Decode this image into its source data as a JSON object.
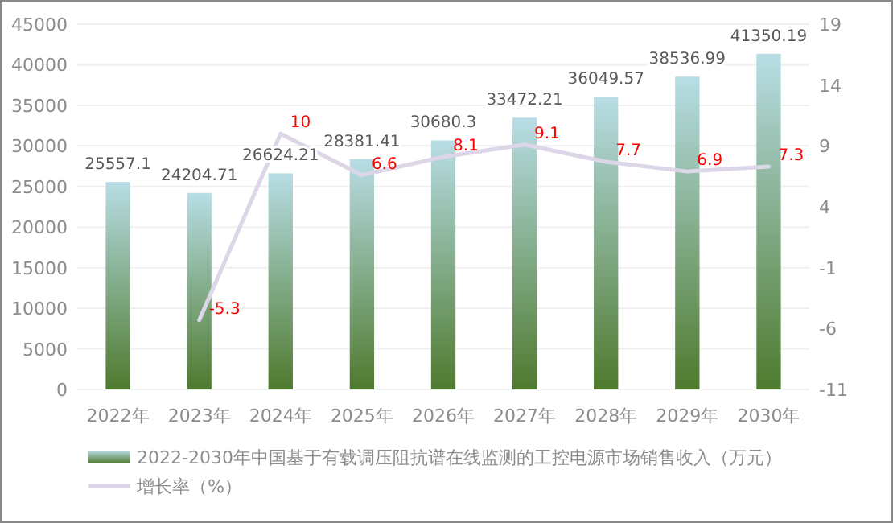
{
  "chart_data": {
    "type": "bar",
    "categories": [
      "2022年",
      "2023年",
      "2024年",
      "2025年",
      "2026年",
      "2027年",
      "2028年",
      "2029年",
      "2030年"
    ],
    "series": [
      {
        "name": "2022-2030年中国基于有载调压阻抗谱在线监测的工控电源市场销售收入（万元）",
        "color": "#4e7a2e",
        "values": [
          25557.1,
          24204.71,
          26624.21,
          28381.41,
          30680.3,
          33472.21,
          36049.57,
          38536.99,
          41350.19
        ]
      },
      {
        "name": "增长率（%）",
        "type": "line",
        "axis": "y2",
        "color": "#dcd6e8",
        "values": [
          null,
          -5.3,
          10,
          6.6,
          8.1,
          9.1,
          7.7,
          6.9,
          7.3
        ]
      }
    ],
    "ylim": [
      0,
      45000
    ],
    "yticks": [
      0,
      5000,
      10000,
      15000,
      20000,
      25000,
      30000,
      35000,
      40000,
      45000
    ],
    "y2lim": [
      -11,
      19
    ],
    "y2ticks": [
      -11,
      -6,
      -1,
      4,
      9,
      14,
      19
    ],
    "data_labels": true,
    "grid": "y",
    "legend": "bottom"
  }
}
